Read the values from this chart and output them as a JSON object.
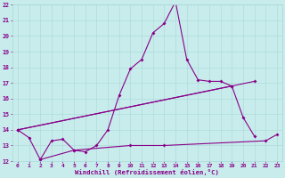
{
  "xlabel": "Windchill (Refroidissement éolien,°C)",
  "xlim": [
    -0.5,
    23.5
  ],
  "ylim": [
    12,
    22
  ],
  "yticks": [
    12,
    13,
    14,
    15,
    16,
    17,
    18,
    19,
    20,
    21,
    22
  ],
  "xticks": [
    0,
    1,
    2,
    3,
    4,
    5,
    6,
    7,
    8,
    9,
    10,
    11,
    12,
    13,
    14,
    15,
    16,
    17,
    18,
    19,
    20,
    21,
    22,
    23
  ],
  "background_color": "#c8ecec",
  "grid_color": "#a8d8d8",
  "line_color": "#880088",
  "line1_x": [
    0,
    1,
    2,
    3,
    4,
    5,
    6,
    7,
    8,
    9,
    10,
    11,
    12,
    13,
    14,
    15,
    16,
    17,
    18,
    19,
    20,
    21
  ],
  "line1_y": [
    14.0,
    13.5,
    12.1,
    13.3,
    13.4,
    12.7,
    12.6,
    13.0,
    14.0,
    16.2,
    17.9,
    18.5,
    20.2,
    20.8,
    22.2,
    18.5,
    17.2,
    17.1,
    17.1,
    16.8,
    14.8,
    13.6
  ],
  "line2_x": [
    0,
    21
  ],
  "line2_y": [
    14.0,
    17.1
  ],
  "line3_x": [
    0,
    19
  ],
  "line3_y": [
    14.0,
    16.8
  ],
  "line4_x": [
    2,
    5,
    10,
    13,
    22,
    23
  ],
  "line4_y": [
    12.1,
    12.7,
    13.0,
    13.0,
    13.3,
    13.7
  ]
}
